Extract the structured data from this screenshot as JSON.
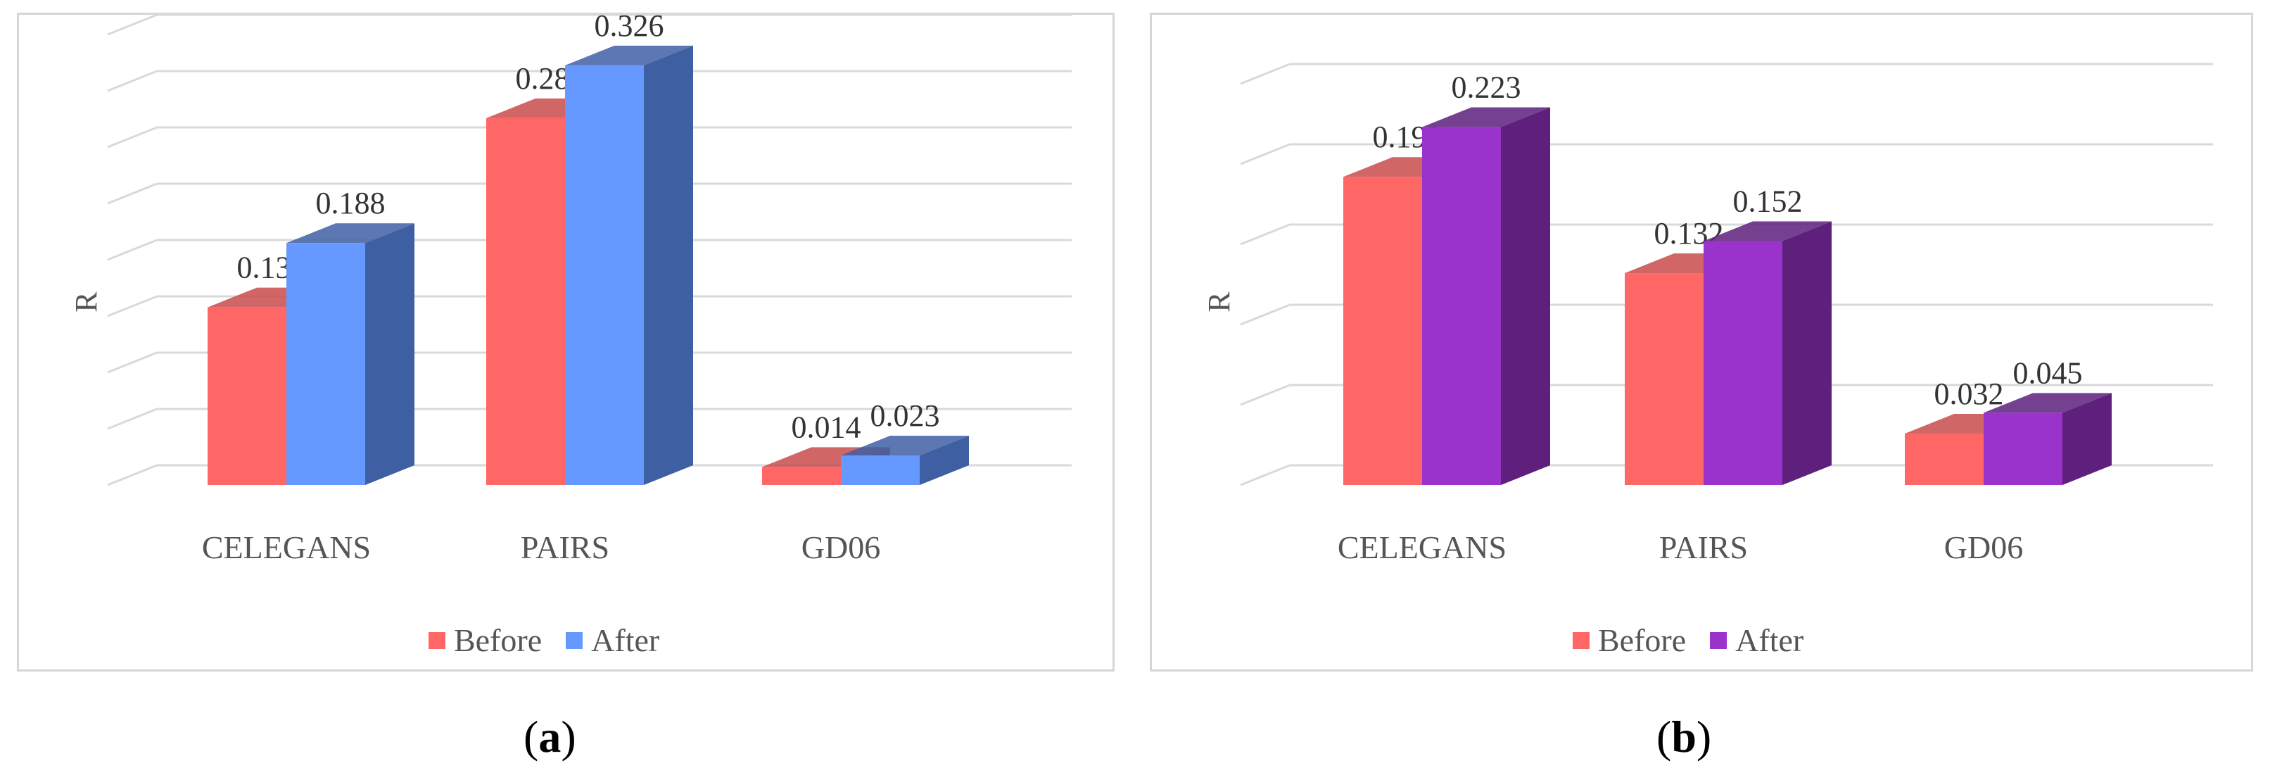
{
  "chart_data": [
    {
      "type": "bar",
      "panel_label": "a",
      "ylabel": "R",
      "categories": [
        "CELEGANS",
        "PAIRS",
        "GD06"
      ],
      "series": [
        {
          "name": "Before",
          "values": [
            0.138,
            0.285,
            0.014
          ],
          "color": "#ff6666",
          "side_color": "#c94b4b"
        },
        {
          "name": "After",
          "values": [
            0.188,
            0.326,
            0.023
          ],
          "color": "#6699ff",
          "side_color": "#3f5fa3"
        }
      ],
      "value_labels": [
        [
          "0.138",
          "0.285",
          "0.014"
        ],
        [
          "0.188",
          "0.326",
          "0.023"
        ]
      ],
      "ylim": [
        0,
        0.35
      ],
      "grid": true,
      "legend": "bottom"
    },
    {
      "type": "bar",
      "panel_label": "b",
      "ylabel": "R",
      "categories": [
        "CELEGANS",
        "PAIRS",
        "GD06"
      ],
      "series": [
        {
          "name": "Before",
          "values": [
            0.192,
            0.132,
            0.032
          ],
          "color": "#ff6666",
          "side_color": "#c94b4b"
        },
        {
          "name": "After",
          "values": [
            0.223,
            0.152,
            0.045
          ],
          "color": "#9933cc",
          "side_color": "#5e1f7d"
        }
      ],
      "value_labels": [
        [
          "0.192",
          "0.132",
          "0.032"
        ],
        [
          "0.223",
          "0.152",
          "0.045"
        ]
      ],
      "ylim": [
        0,
        0.25
      ],
      "grid": true,
      "legend": "bottom"
    }
  ],
  "captions": [
    "a",
    "b"
  ]
}
